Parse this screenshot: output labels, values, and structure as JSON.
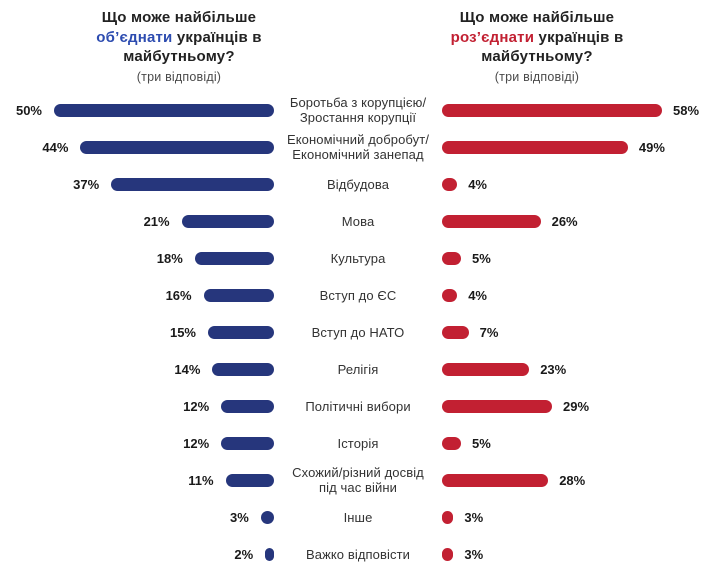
{
  "header": {
    "left": {
      "line1": "Що може найбільше",
      "highlight": "об’єднати",
      "line2_rest": "українців в",
      "line3": "майбутньому?",
      "subtitle": "(три відповіді)",
      "highlight_color": "#2d4cb0"
    },
    "right": {
      "line1": "Що може найбільше",
      "highlight": "роз’єднати",
      "line2_rest": "українців в",
      "line3": "майбутньому?",
      "subtitle": "(три відповіді)",
      "highlight_color": "#c22032"
    }
  },
  "chart_data": {
    "type": "bar",
    "orientation": "horizontal-diverging",
    "unit": "%",
    "categories": [
      "Боротьба з корупцією/\nЗростання корупції",
      "Економічний добробут/\nЕкономічний занепад",
      "Відбудова",
      "Мова",
      "Культура",
      "Вступ до ЄС",
      "Вступ до НАТО",
      "Релігія",
      "Політичні вибори",
      "Історія",
      "Схожий/різний досвід\nпід час війни",
      "Інше",
      "Важко відповісти"
    ],
    "series": [
      {
        "name": "Об’єднати",
        "side": "left",
        "color": "#26367c",
        "values": [
          50,
          44,
          37,
          21,
          18,
          16,
          15,
          14,
          12,
          12,
          11,
          3,
          2
        ]
      },
      {
        "name": "Роз’єднати",
        "side": "right",
        "color": "#c22032",
        "values": [
          58,
          49,
          4,
          26,
          5,
          4,
          7,
          23,
          29,
          5,
          28,
          3,
          3
        ]
      }
    ]
  }
}
